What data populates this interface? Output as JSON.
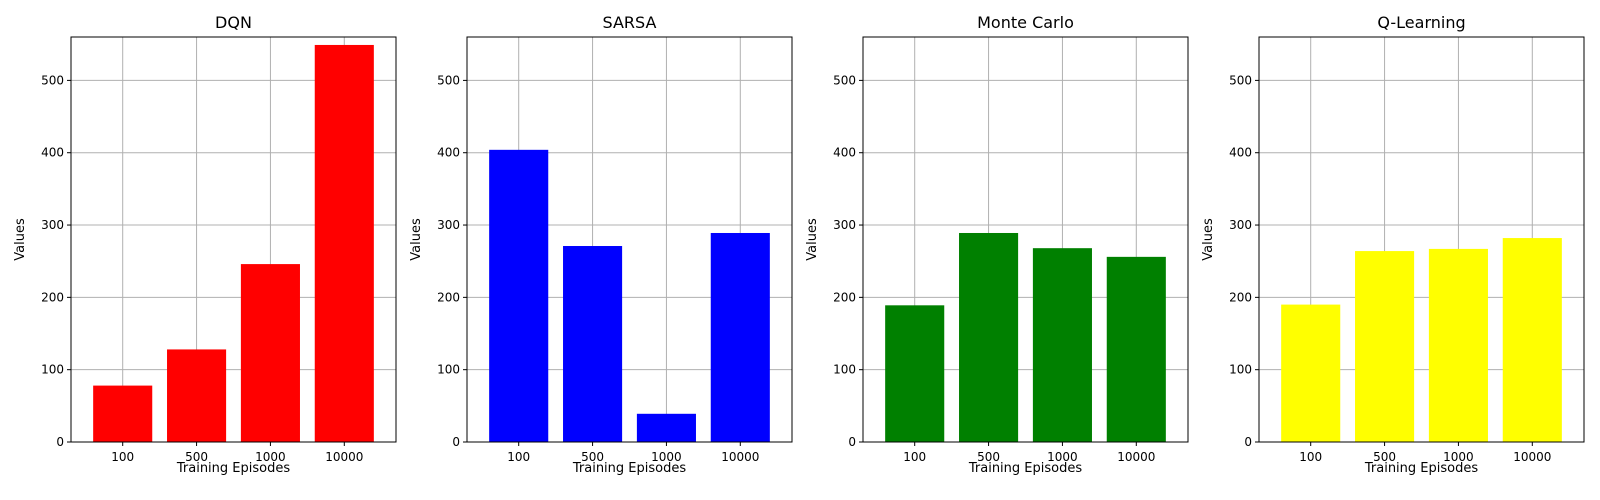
{
  "chart_data": [
    {
      "type": "bar",
      "title": "DQN",
      "categories": [
        "100",
        "500",
        "1000",
        "10000"
      ],
      "values": [
        78,
        128,
        246,
        549
      ],
      "xlabel": "Training Episodes",
      "ylabel": "Values",
      "ylim": [
        0,
        560
      ],
      "yticks": [
        0,
        100,
        200,
        300,
        400,
        500
      ],
      "grid": true,
      "color": "#ff0000"
    },
    {
      "type": "bar",
      "title": "SARSA",
      "categories": [
        "100",
        "500",
        "1000",
        "10000"
      ],
      "values": [
        404,
        271,
        39,
        289
      ],
      "xlabel": "Training Episodes",
      "ylabel": "Values",
      "ylim": [
        0,
        560
      ],
      "yticks": [
        0,
        100,
        200,
        300,
        400,
        500
      ],
      "grid": true,
      "color": "#0000ff"
    },
    {
      "type": "bar",
      "title": "Monte Carlo",
      "categories": [
        "100",
        "500",
        "1000",
        "10000"
      ],
      "values": [
        189,
        289,
        268,
        256
      ],
      "xlabel": "Training Episodes",
      "ylabel": "Values",
      "ylim": [
        0,
        560
      ],
      "yticks": [
        0,
        100,
        200,
        300,
        400,
        500
      ],
      "grid": true,
      "color": "#008000"
    },
    {
      "type": "bar",
      "title": "Q-Learning",
      "categories": [
        "100",
        "500",
        "1000",
        "10000"
      ],
      "values": [
        190,
        264,
        267,
        282
      ],
      "xlabel": "Training Episodes",
      "ylabel": "Values",
      "ylim": [
        0,
        560
      ],
      "yticks": [
        0,
        100,
        200,
        300,
        400,
        500
      ],
      "grid": true,
      "color": "#ffff00"
    }
  ]
}
